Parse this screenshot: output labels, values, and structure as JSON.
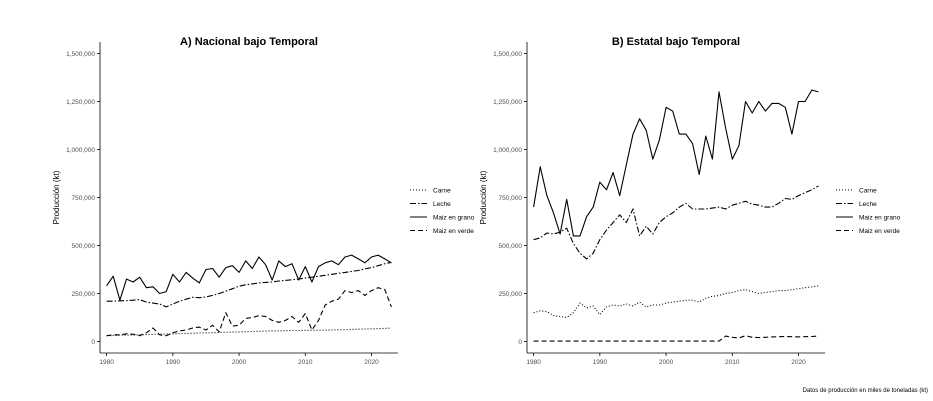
{
  "caption": "Datos de producción en miles de toneladas (kt)",
  "chart_data": [
    {
      "type": "line",
      "title": "A) Nacional bajo Temporal",
      "ylabel": "Producción (kt)",
      "xlabel": "",
      "ylim": [
        -60000,
        1560000
      ],
      "xlim": [
        1979,
        2024
      ],
      "y_ticks": [
        "0",
        "250,000",
        "500,000",
        "750,000",
        "1,000,000",
        "1,250,000",
        "1,500,000"
      ],
      "x_ticks": [
        "1980",
        "1990",
        "2000",
        "2010",
        "2020"
      ],
      "grid": false,
      "legend": "right",
      "x": [
        1980,
        1981,
        1982,
        1983,
        1984,
        1985,
        1986,
        1987,
        1988,
        1989,
        1990,
        1991,
        1992,
        1993,
        1994,
        1995,
        1996,
        1997,
        1998,
        1999,
        2000,
        2001,
        2002,
        2003,
        2004,
        2005,
        2006,
        2007,
        2008,
        2009,
        2010,
        2011,
        2012,
        2013,
        2014,
        2015,
        2016,
        2017,
        2018,
        2019,
        2020,
        2021,
        2022,
        2023
      ],
      "series": [
        {
          "name": "Carne",
          "dash": "dotted",
          "values": [
            30000,
            31000,
            32000,
            33000,
            34000,
            35000,
            36000,
            37000,
            38000,
            39000,
            40000,
            41000,
            42000,
            43000,
            44000,
            45000,
            46000,
            47000,
            48000,
            49000,
            50000,
            51000,
            52000,
            53000,
            54000,
            55000,
            55000,
            56000,
            57000,
            57000,
            58000,
            58000,
            59000,
            59000,
            60000,
            61000,
            62000,
            63000,
            64000,
            65000,
            66000,
            67000,
            68000,
            70000
          ]
        },
        {
          "name": "Leche",
          "dash": "dashdot",
          "values": [
            210000,
            210000,
            212000,
            213000,
            215000,
            218000,
            205000,
            200000,
            195000,
            180000,
            195000,
            210000,
            220000,
            230000,
            228000,
            232000,
            240000,
            250000,
            262000,
            275000,
            288000,
            295000,
            300000,
            305000,
            308000,
            310000,
            315000,
            318000,
            322000,
            325000,
            330000,
            335000,
            340000,
            345000,
            350000,
            355000,
            360000,
            365000,
            370000,
            378000,
            385000,
            395000,
            405000,
            412000
          ]
        },
        {
          "name": "Maiz en grano",
          "dash": "solid",
          "values": [
            290000,
            340000,
            215000,
            325000,
            310000,
            335000,
            280000,
            285000,
            250000,
            260000,
            350000,
            310000,
            360000,
            330000,
            305000,
            375000,
            380000,
            335000,
            385000,
            395000,
            360000,
            420000,
            380000,
            440000,
            400000,
            320000,
            420000,
            390000,
            405000,
            320000,
            390000,
            310000,
            390000,
            410000,
            420000,
            400000,
            440000,
            450000,
            430000,
            410000,
            440000,
            450000,
            430000,
            410000
          ]
        },
        {
          "name": "Maiz en verde",
          "dash": "dashed",
          "values": [
            30000,
            35000,
            35000,
            40000,
            38000,
            30000,
            45000,
            70000,
            35000,
            30000,
            45000,
            55000,
            60000,
            70000,
            75000,
            60000,
            85000,
            50000,
            150000,
            80000,
            85000,
            120000,
            125000,
            135000,
            130000,
            110000,
            100000,
            110000,
            130000,
            100000,
            145000,
            60000,
            110000,
            190000,
            210000,
            220000,
            265000,
            255000,
            265000,
            240000,
            265000,
            280000,
            270000,
            180000
          ]
        }
      ]
    },
    {
      "type": "line",
      "title": "B) Estatal bajo Temporal",
      "ylabel": "Producción (kt)",
      "xlabel": "",
      "ylim": [
        -60000,
        1560000
      ],
      "xlim": [
        1979,
        2024
      ],
      "y_ticks": [
        "0",
        "250,000",
        "500,000",
        "750,000",
        "1,000,000",
        "1,250,000",
        "1,500,000"
      ],
      "x_ticks": [
        "1980",
        "1990",
        "2000",
        "2010",
        "2020"
      ],
      "grid": false,
      "legend": "right",
      "x": [
        1980,
        1981,
        1982,
        1983,
        1984,
        1985,
        1986,
        1987,
        1988,
        1989,
        1990,
        1991,
        1992,
        1993,
        1994,
        1995,
        1996,
        1997,
        1998,
        1999,
        2000,
        2001,
        2002,
        2003,
        2004,
        2005,
        2006,
        2007,
        2008,
        2009,
        2010,
        2011,
        2012,
        2013,
        2014,
        2015,
        2016,
        2017,
        2018,
        2019,
        2020,
        2021,
        2022,
        2023
      ],
      "series": [
        {
          "name": "Carne",
          "dash": "dotted",
          "values": [
            150000,
            160000,
            155000,
            135000,
            130000,
            125000,
            150000,
            200000,
            175000,
            185000,
            140000,
            180000,
            190000,
            185000,
            195000,
            185000,
            205000,
            180000,
            190000,
            190000,
            200000,
            205000,
            210000,
            215000,
            215000,
            205000,
            225000,
            235000,
            240000,
            250000,
            255000,
            265000,
            270000,
            260000,
            250000,
            255000,
            260000,
            265000,
            265000,
            270000,
            275000,
            280000,
            285000,
            290000
          ]
        },
        {
          "name": "Leche",
          "dash": "dashdot",
          "values": [
            530000,
            540000,
            565000,
            560000,
            570000,
            590000,
            510000,
            460000,
            430000,
            460000,
            530000,
            580000,
            620000,
            660000,
            620000,
            690000,
            550000,
            600000,
            560000,
            620000,
            650000,
            670000,
            700000,
            720000,
            690000,
            690000,
            690000,
            695000,
            700000,
            690000,
            710000,
            720000,
            730000,
            715000,
            710000,
            700000,
            700000,
            720000,
            745000,
            740000,
            760000,
            775000,
            790000,
            810000
          ]
        },
        {
          "name": "Maiz en grano",
          "dash": "solid",
          "values": [
            700000,
            910000,
            760000,
            670000,
            560000,
            740000,
            550000,
            550000,
            650000,
            700000,
            830000,
            790000,
            880000,
            760000,
            920000,
            1080000,
            1160000,
            1100000,
            950000,
            1050000,
            1220000,
            1200000,
            1080000,
            1080000,
            1030000,
            870000,
            1070000,
            950000,
            1300000,
            1110000,
            950000,
            1020000,
            1250000,
            1190000,
            1250000,
            1200000,
            1240000,
            1240000,
            1220000,
            1080000,
            1250000,
            1250000,
            1310000,
            1300000
          ]
        },
        {
          "name": "Maiz en verde",
          "dash": "dashed",
          "values": [
            2000,
            2000,
            2000,
            2000,
            2000,
            2000,
            2000,
            2000,
            2000,
            2000,
            2000,
            2000,
            2000,
            2000,
            2000,
            2000,
            2000,
            2000,
            2000,
            2000,
            2000,
            2000,
            2000,
            2000,
            2000,
            2000,
            2000,
            2000,
            2000,
            28000,
            22000,
            18000,
            30000,
            22000,
            20000,
            22000,
            24000,
            25000,
            26000,
            25000,
            24000,
            25000,
            26000,
            28000
          ]
        }
      ]
    }
  ]
}
